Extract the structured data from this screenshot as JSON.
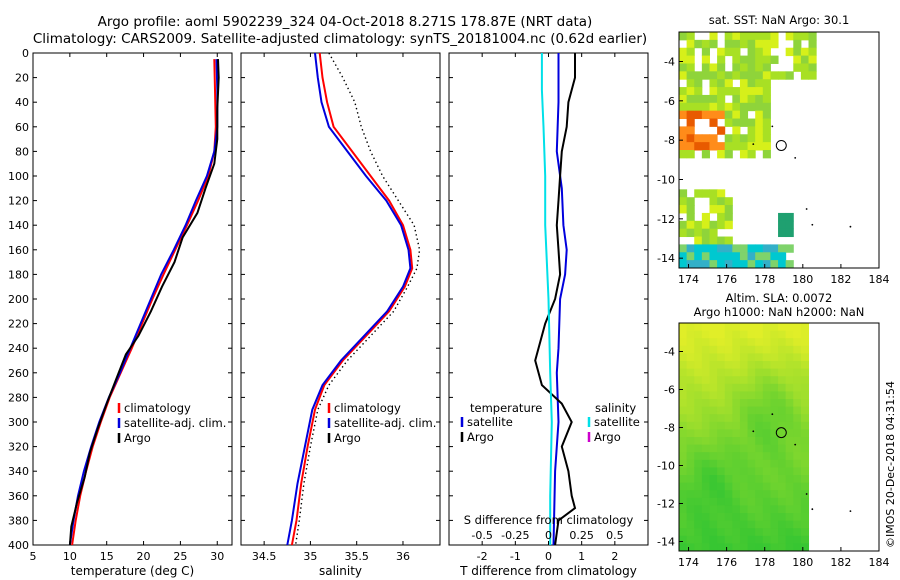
{
  "header": {
    "line1": "Argo profile: aoml 5902239_324 04-Oct-2018 8.271S 178.87E (NRT data)",
    "line2": "Climatology: CARS2009. Satellite-adjusted climatology: synTS_20181004.nc (0.62d earlier)"
  },
  "colors": {
    "climatology": "#ff0000",
    "satellite": "#0000dd",
    "argo": "#000000",
    "sat_salinity": "#00e0e8",
    "argo_salinity": "#cc00cc"
  },
  "side_text": "©IMOS 20-Dec-2018 04:31:54",
  "chart_data": [
    {
      "type": "line",
      "id": "temperature",
      "xlabel": "temperature (deg C)",
      "ylabel": "depth",
      "xlim": [
        5,
        32
      ],
      "ylim": [
        400,
        0
      ],
      "xticks": [
        5,
        10,
        15,
        20,
        25,
        30
      ],
      "yticks": [
        0,
        20,
        40,
        60,
        80,
        100,
        120,
        140,
        160,
        180,
        200,
        220,
        240,
        260,
        280,
        300,
        320,
        340,
        360,
        380,
        400
      ],
      "legend": {
        "position": "lower-right",
        "entries": [
          "climatology",
          "satellite-adj. clim.",
          "Argo"
        ]
      },
      "series": [
        {
          "name": "climatology",
          "color": "#ff0000",
          "points": [
            [
              29.6,
              5
            ],
            [
              29.7,
              30
            ],
            [
              29.8,
              60
            ],
            [
              29.6,
              80
            ],
            [
              28.8,
              100
            ],
            [
              27.4,
              120
            ],
            [
              25.9,
              140
            ],
            [
              24.3,
              160
            ],
            [
              22.7,
              180
            ],
            [
              21.2,
              200
            ],
            [
              19.8,
              220
            ],
            [
              18.4,
              240
            ],
            [
              16.9,
              260
            ],
            [
              15.4,
              280
            ],
            [
              14.2,
              300
            ],
            [
              13.1,
              320
            ],
            [
              12.2,
              340
            ],
            [
              11.4,
              360
            ],
            [
              10.8,
              380
            ],
            [
              10.3,
              400
            ]
          ]
        },
        {
          "name": "satellite-adj. clim.",
          "color": "#0000dd",
          "points": [
            [
              29.9,
              5
            ],
            [
              30.0,
              30
            ],
            [
              30.0,
              60
            ],
            [
              29.6,
              80
            ],
            [
              28.6,
              100
            ],
            [
              27.1,
              120
            ],
            [
              25.7,
              140
            ],
            [
              24.1,
              160
            ],
            [
              22.4,
              180
            ],
            [
              21.0,
              200
            ],
            [
              19.6,
              220
            ],
            [
              18.2,
              240
            ],
            [
              16.8,
              260
            ],
            [
              15.3,
              280
            ],
            [
              14.0,
              300
            ],
            [
              12.9,
              320
            ],
            [
              11.9,
              340
            ],
            [
              11.1,
              360
            ],
            [
              10.5,
              380
            ],
            [
              10.0,
              400
            ]
          ]
        },
        {
          "name": "Argo",
          "color": "#000000",
          "points": [
            [
              30.1,
              5
            ],
            [
              30.2,
              20
            ],
            [
              30.0,
              45
            ],
            [
              30.0,
              70
            ],
            [
              29.6,
              90
            ],
            [
              28.4,
              110
            ],
            [
              27.3,
              130
            ],
            [
              25.3,
              150
            ],
            [
              24.2,
              170
            ],
            [
              22.5,
              190
            ],
            [
              21.0,
              210
            ],
            [
              19.3,
              230
            ],
            [
              17.6,
              245
            ],
            [
              16.3,
              265
            ],
            [
              15.0,
              285
            ],
            [
              13.8,
              305
            ],
            [
              12.7,
              325
            ],
            [
              12.0,
              345
            ],
            [
              11.0,
              365
            ],
            [
              10.2,
              385
            ],
            [
              10.0,
              400
            ]
          ]
        }
      ]
    },
    {
      "type": "line",
      "id": "salinity",
      "xlabel": "salinity",
      "ylabel": "depth",
      "xlim": [
        34.25,
        36.4
      ],
      "ylim": [
        400,
        0
      ],
      "xticks": [
        34.5,
        35,
        35.5,
        36
      ],
      "legend": {
        "position": "lower-right",
        "entries": [
          "climatology",
          "satellite-adj. clim.",
          "Argo"
        ]
      },
      "series": [
        {
          "name": "climatology",
          "color": "#ff0000",
          "points": [
            [
              35.1,
              0
            ],
            [
              35.13,
              20
            ],
            [
              35.18,
              40
            ],
            [
              35.25,
              60
            ],
            [
              35.45,
              80
            ],
            [
              35.65,
              100
            ],
            [
              35.85,
              120
            ],
            [
              36.0,
              140
            ],
            [
              36.08,
              160
            ],
            [
              36.1,
              175
            ],
            [
              36.02,
              190
            ],
            [
              35.85,
              210
            ],
            [
              35.6,
              230
            ],
            [
              35.35,
              250
            ],
            [
              35.15,
              270
            ],
            [
              35.05,
              290
            ],
            [
              34.97,
              320
            ],
            [
              34.9,
              350
            ],
            [
              34.85,
              380
            ],
            [
              34.8,
              400
            ]
          ]
        },
        {
          "name": "satellite-adj. clim.",
          "color": "#0000dd",
          "points": [
            [
              35.05,
              0
            ],
            [
              35.08,
              20
            ],
            [
              35.12,
              40
            ],
            [
              35.2,
              60
            ],
            [
              35.4,
              80
            ],
            [
              35.6,
              100
            ],
            [
              35.82,
              120
            ],
            [
              35.98,
              140
            ],
            [
              36.06,
              160
            ],
            [
              36.08,
              175
            ],
            [
              36.0,
              190
            ],
            [
              35.83,
              210
            ],
            [
              35.58,
              230
            ],
            [
              35.33,
              250
            ],
            [
              35.13,
              270
            ],
            [
              35.02,
              290
            ],
            [
              34.94,
              320
            ],
            [
              34.86,
              350
            ],
            [
              34.8,
              380
            ],
            [
              34.75,
              400
            ]
          ]
        },
        {
          "name": "Argo",
          "color": "#000000",
          "dotted": true,
          "points": [
            [
              35.2,
              0
            ],
            [
              35.35,
              20
            ],
            [
              35.48,
              40
            ],
            [
              35.55,
              60
            ],
            [
              35.65,
              80
            ],
            [
              35.78,
              100
            ],
            [
              35.95,
              120
            ],
            [
              36.12,
              140
            ],
            [
              36.18,
              160
            ],
            [
              36.15,
              175
            ],
            [
              36.05,
              190
            ],
            [
              35.9,
              210
            ],
            [
              35.65,
              230
            ],
            [
              35.4,
              250
            ],
            [
              35.2,
              270
            ],
            [
              35.08,
              290
            ],
            [
              35.0,
              320
            ],
            [
              34.93,
              350
            ],
            [
              34.88,
              380
            ],
            [
              34.84,
              400
            ]
          ]
        }
      ]
    },
    {
      "type": "line",
      "id": "differences",
      "xlabel": "T difference from climatology",
      "ylabel": "depth",
      "xlim": [
        -3,
        3
      ],
      "ylim": [
        400,
        0
      ],
      "xticks": [
        -2,
        -1,
        0,
        1,
        2
      ],
      "top_axis": {
        "label": "S difference from climatology",
        "ticks": [
          "-0.5",
          "-0.25",
          "0",
          "0.25",
          "0.5"
        ],
        "values": [
          -0.5,
          -0.25,
          0,
          0.25,
          0.5
        ]
      },
      "legend_left": {
        "position": "lower-left",
        "title": "temperature",
        "entries": [
          "satellite",
          "Argo"
        ]
      },
      "legend_right": {
        "position": "lower-right",
        "title": "salinity",
        "entries": [
          "satellite",
          "Argo"
        ]
      },
      "series": [
        {
          "name": "temperature satellite",
          "color": "#0000dd",
          "points": [
            [
              0.3,
              0
            ],
            [
              0.3,
              40
            ],
            [
              0.25,
              80
            ],
            [
              0.4,
              110
            ],
            [
              0.45,
              140
            ],
            [
              0.55,
              160
            ],
            [
              0.5,
              180
            ],
            [
              0.35,
              200
            ],
            [
              0.3,
              240
            ],
            [
              0.25,
              260
            ],
            [
              0.3,
              300
            ],
            [
              0.2,
              340
            ],
            [
              0.15,
              400
            ]
          ]
        },
        {
          "name": "temperature Argo",
          "color": "#000000",
          "points": [
            [
              0.8,
              0
            ],
            [
              0.8,
              20
            ],
            [
              0.6,
              40
            ],
            [
              0.55,
              60
            ],
            [
              0.4,
              80
            ],
            [
              0.35,
              100
            ],
            [
              0.3,
              120
            ],
            [
              0.25,
              140
            ],
            [
              0.3,
              160
            ],
            [
              0.35,
              180
            ],
            [
              0.2,
              200
            ],
            [
              -0.1,
              220
            ],
            [
              -0.4,
              250
            ],
            [
              -0.2,
              270
            ],
            [
              0.4,
              285
            ],
            [
              0.7,
              300
            ],
            [
              0.4,
              320
            ],
            [
              0.6,
              340
            ],
            [
              0.7,
              360
            ],
            [
              0.8,
              370
            ],
            [
              0.3,
              380
            ],
            [
              0.2,
              400
            ]
          ]
        },
        {
          "name": "salinity satellite",
          "color": "#00e0e8",
          "points": [
            [
              -0.2,
              0
            ],
            [
              -0.2,
              30
            ],
            [
              -0.15,
              60
            ],
            [
              -0.1,
              100
            ],
            [
              -0.1,
              140
            ],
            [
              0.0,
              200
            ],
            [
              0.05,
              260
            ],
            [
              0.1,
              300
            ],
            [
              0.05,
              360
            ],
            [
              0.05,
              400
            ]
          ]
        }
      ]
    },
    {
      "type": "heatmap",
      "id": "sst-map",
      "title": "sat. SST: NaN Argo: 30.1",
      "xlim": [
        173.5,
        184
      ],
      "ylim": [
        -14.5,
        -2.5
      ],
      "xticks": [
        174,
        176,
        178,
        180,
        182,
        184
      ],
      "yticks": [
        -4,
        -6,
        -8,
        -10,
        -12,
        -14
      ],
      "marker": [
        178.87,
        -8.27
      ]
    },
    {
      "type": "heatmap",
      "id": "sla-map",
      "title": "Altim. SLA: 0.0072",
      "subtitle": "Argo h1000: NaN h2000: NaN",
      "xlim": [
        173.5,
        184
      ],
      "ylim": [
        -14.5,
        -2.5
      ],
      "xticks": [
        174,
        176,
        178,
        180,
        182,
        184
      ],
      "yticks": [
        -4,
        -6,
        -8,
        -10,
        -12,
        -14
      ],
      "marker": [
        178.87,
        -8.27
      ]
    }
  ]
}
